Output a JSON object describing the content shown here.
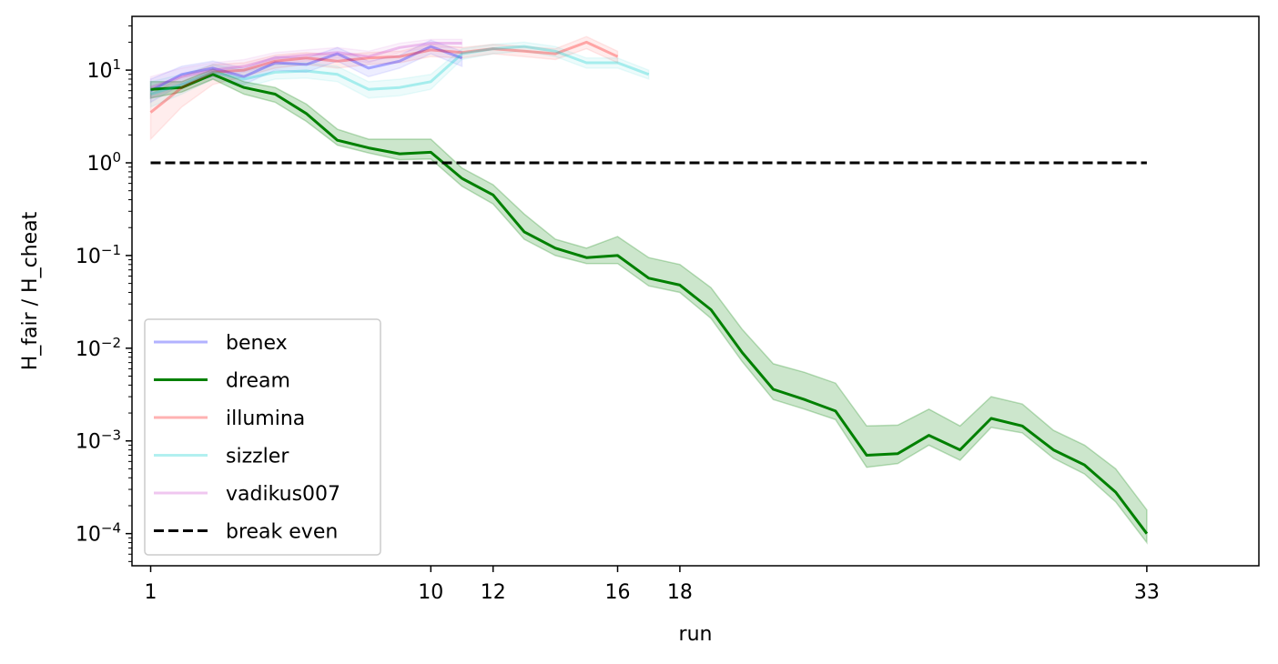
{
  "chart_data": {
    "type": "line",
    "title": "",
    "xlabel": "run",
    "ylabel": "H_fair / H_cheat",
    "yscale": "log",
    "xlim": [
      -0.6,
      35.6
    ],
    "ylim": [
      4.5e-05,
      38
    ],
    "x_ticks": [
      0,
      9,
      11,
      15,
      17,
      32
    ],
    "x_tick_labels": [
      "1",
      "10",
      "12",
      "16",
      "18",
      "33"
    ],
    "y_ticks": [
      {
        "value": 0.0001,
        "base": "10",
        "exp": "−4"
      },
      {
        "value": 0.001,
        "base": "10",
        "exp": "−3"
      },
      {
        "value": 0.01,
        "base": "10",
        "exp": "−2"
      },
      {
        "value": 0.1,
        "base": "10",
        "exp": "−1"
      },
      {
        "value": 1,
        "base": "10",
        "exp": "0"
      },
      {
        "value": 10,
        "base": "10",
        "exp": "1"
      }
    ],
    "grid": false,
    "legend_position": "lower-left",
    "series": [
      {
        "name": "benex",
        "color": "#0000ff",
        "opacity": 0.3,
        "x": [
          0,
          1,
          2,
          3,
          4,
          5,
          6,
          7,
          8,
          9,
          10
        ],
        "y": [
          6.0,
          9.0,
          10.5,
          8.5,
          12.0,
          11.5,
          15.0,
          10.5,
          12.5,
          18.0,
          13.5
        ],
        "lower": [
          4.5,
          7.0,
          8.5,
          7.0,
          10.0,
          9.5,
          12.5,
          8.5,
          10.5,
          15.0,
          11.0
        ],
        "upper": [
          8.0,
          11.0,
          12.5,
          10.5,
          14.0,
          13.5,
          17.5,
          12.5,
          14.5,
          21.0,
          16.0
        ]
      },
      {
        "name": "dream",
        "color": "#008000",
        "opacity": 1.0,
        "x": [
          0,
          1,
          2,
          3,
          4,
          5,
          6,
          7,
          8,
          9,
          10,
          11,
          12,
          13,
          14,
          15,
          16,
          17,
          18,
          19,
          20,
          21,
          22,
          23,
          24,
          25,
          26,
          27,
          28,
          29,
          30,
          31,
          32
        ],
        "y": [
          6.2,
          6.5,
          9.0,
          6.5,
          5.5,
          3.4,
          1.75,
          1.45,
          1.25,
          1.3,
          0.68,
          0.45,
          0.18,
          0.12,
          0.095,
          0.1,
          0.057,
          0.048,
          0.026,
          0.009,
          0.0036,
          0.0028,
          0.0021,
          0.0007,
          0.00073,
          0.00115,
          0.0008,
          0.00175,
          0.00145,
          0.0008,
          0.00055,
          0.00028,
          0.0001
        ],
        "lower": [
          5.0,
          5.8,
          8.0,
          5.5,
          4.5,
          2.8,
          1.55,
          1.28,
          1.08,
          1.1,
          0.56,
          0.36,
          0.15,
          0.1,
          0.082,
          0.082,
          0.047,
          0.04,
          0.021,
          0.0072,
          0.0028,
          0.0022,
          0.0017,
          0.00052,
          0.00057,
          0.0009,
          0.00062,
          0.0014,
          0.00122,
          0.00065,
          0.00044,
          0.00022,
          8e-05
        ],
        "upper": [
          7.5,
          7.5,
          10.2,
          7.5,
          6.5,
          4.3,
          2.3,
          1.8,
          1.8,
          1.8,
          0.88,
          0.58,
          0.28,
          0.15,
          0.12,
          0.16,
          0.095,
          0.08,
          0.045,
          0.016,
          0.0068,
          0.0055,
          0.0042,
          0.00145,
          0.00148,
          0.0022,
          0.00145,
          0.003,
          0.0025,
          0.0013,
          0.0009,
          0.0005,
          0.00018
        ]
      },
      {
        "name": "illumina",
        "color": "#ff0000",
        "opacity": 0.3,
        "x": [
          0,
          1,
          2,
          3,
          4,
          5,
          6,
          7,
          8,
          9,
          10,
          11,
          12,
          13,
          14,
          15
        ],
        "y": [
          3.5,
          6.5,
          9.5,
          10.0,
          12.5,
          13.5,
          12.5,
          13.5,
          14.0,
          16.5,
          15.5,
          17.0,
          16.0,
          15.0,
          20.0,
          14.0
        ],
        "lower": [
          1.8,
          4.0,
          7.0,
          8.5,
          10.5,
          11.5,
          10.5,
          11.5,
          12.0,
          14.0,
          13.5,
          15.0,
          14.0,
          13.0,
          17.0,
          12.0
        ],
        "upper": [
          5.5,
          8.5,
          11.5,
          12.0,
          14.5,
          15.5,
          14.5,
          15.5,
          16.0,
          19.0,
          17.5,
          19.0,
          18.0,
          17.0,
          23.0,
          16.0
        ]
      },
      {
        "name": "sizzler",
        "color": "#00cccc",
        "opacity": 0.3,
        "x": [
          0,
          1,
          2,
          3,
          4,
          5,
          6,
          7,
          8,
          9,
          10,
          11,
          12,
          13,
          14,
          15,
          16
        ],
        "y": [
          5.5,
          7.0,
          9.5,
          8.0,
          9.5,
          9.8,
          9.0,
          6.2,
          6.5,
          7.5,
          15.0,
          17.0,
          18.0,
          16.0,
          12.0,
          12.0,
          9.0
        ],
        "lower": [
          4.0,
          5.5,
          8.0,
          6.5,
          8.0,
          8.2,
          7.5,
          5.0,
          5.3,
          6.2,
          13.0,
          15.0,
          16.0,
          14.0,
          10.5,
          10.5,
          8.0
        ],
        "upper": [
          7.5,
          9.0,
          11.5,
          10.0,
          11.5,
          12.0,
          11.0,
          7.5,
          8.0,
          9.0,
          17.0,
          19.0,
          20.0,
          18.0,
          13.5,
          13.5,
          10.0
        ]
      },
      {
        "name": "vadikus007",
        "color": "#cc44cc",
        "opacity": 0.3,
        "x": [
          0,
          1,
          2,
          3,
          4,
          5,
          6,
          7,
          8,
          9,
          10
        ],
        "y": [
          6.5,
          8.5,
          10.0,
          11.0,
          13.5,
          14.5,
          15.5,
          14.0,
          17.5,
          19.5,
          19.5
        ],
        "lower": [
          5.0,
          7.0,
          8.5,
          9.5,
          11.5,
          12.5,
          13.5,
          12.0,
          15.5,
          17.5,
          17.5
        ],
        "upper": [
          8.5,
          10.5,
          12.0,
          13.0,
          15.5,
          16.5,
          17.5,
          16.0,
          19.5,
          21.5,
          21.5
        ]
      },
      {
        "name": "break even",
        "color": "#000000",
        "opacity": 1.0,
        "dashed": true,
        "x": [
          0,
          32
        ],
        "y": [
          1,
          1
        ]
      }
    ]
  }
}
